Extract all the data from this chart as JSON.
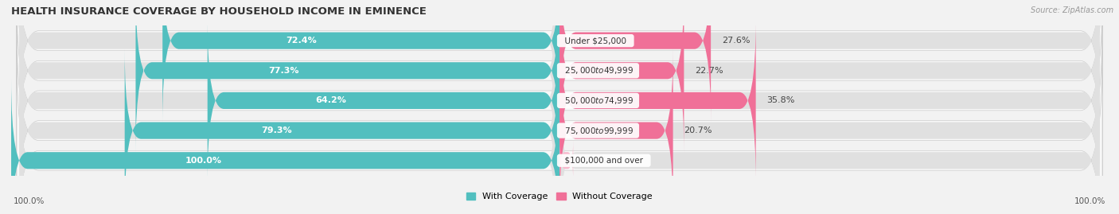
{
  "title": "HEALTH INSURANCE COVERAGE BY HOUSEHOLD INCOME IN EMINENCE",
  "source": "Source: ZipAtlas.com",
  "categories": [
    "Under $25,000",
    "$25,000 to $49,999",
    "$50,000 to $74,999",
    "$75,000 to $99,999",
    "$100,000 and over"
  ],
  "with_coverage": [
    72.4,
    77.3,
    64.2,
    79.3,
    100.0
  ],
  "without_coverage": [
    27.6,
    22.7,
    35.8,
    20.7,
    0.0
  ],
  "color_with": "#52BFBF",
  "color_without": "#F07098",
  "color_without_light": "#F8B8CC",
  "bg_color": "#f2f2f2",
  "bar_bg_color": "#e0e0e0",
  "row_bg_color": "#f8f8f8",
  "legend_with": "With Coverage",
  "legend_without": "Without Coverage",
  "title_fontsize": 9.5,
  "bar_label_fontsize": 8,
  "category_fontsize": 7.5,
  "axis_label_fontsize": 7.5
}
